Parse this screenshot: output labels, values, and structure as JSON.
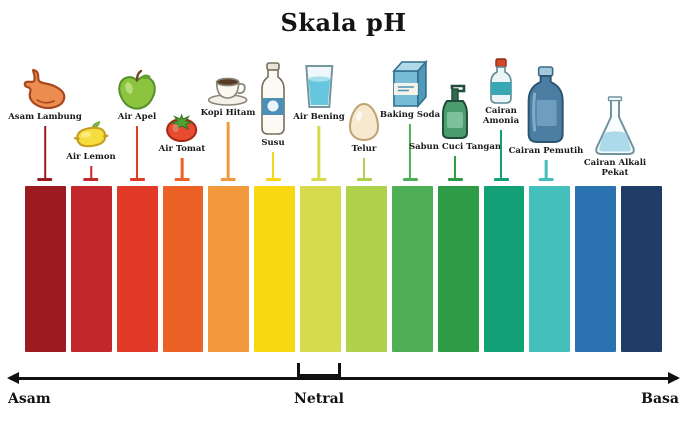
{
  "title": "Skala pH",
  "axis": {
    "left_label": "Asam",
    "center_label": "Netral",
    "right_label": "Basa"
  },
  "bars": [
    "#9C1B20",
    "#C1272B",
    "#E23A28",
    "#EB6126",
    "#F2993C",
    "#F8D813",
    "#D5DB4C",
    "#AFD14B",
    "#4EAF56",
    "#2E9B47",
    "#12A077",
    "#45BFBC",
    "#2B72B0",
    "#1F3D66"
  ],
  "items": [
    {
      "label": "Asam Lambung",
      "icon": "stomach-icon",
      "bar": 0
    },
    {
      "label": "Air Lemon",
      "icon": "lemon-icon",
      "bar": 1
    },
    {
      "label": "Air Apel",
      "icon": "apple-icon",
      "bar": 2
    },
    {
      "label": "Air Tomat",
      "icon": "tomato-icon",
      "bar": 3
    },
    {
      "label": "Kopi Hitam",
      "icon": "coffee-cup-icon",
      "bar": 4
    },
    {
      "label": "Susu",
      "icon": "milk-bottle-icon",
      "bar": 5
    },
    {
      "label": "Air Bening",
      "icon": "water-glass-icon",
      "bar": 6
    },
    {
      "label": "Telur",
      "icon": "egg-icon",
      "bar": 7
    },
    {
      "label": "Baking Soda",
      "icon": "baking-soda-box-icon",
      "bar": 8
    },
    {
      "label": "Sabun Cuci Tangan",
      "icon": "soap-dispenser-icon",
      "bar": 9
    },
    {
      "label": "Cairan Amonia",
      "icon": "ammonia-bottle-icon",
      "bar": 10
    },
    {
      "label": "Cairan Pemutih",
      "icon": "bleach-bottle-icon",
      "bar": 11
    },
    {
      "label": "Cairan Alkali Pekat",
      "icon": "erlenmeyer-flask-icon",
      "bar": 13
    }
  ]
}
